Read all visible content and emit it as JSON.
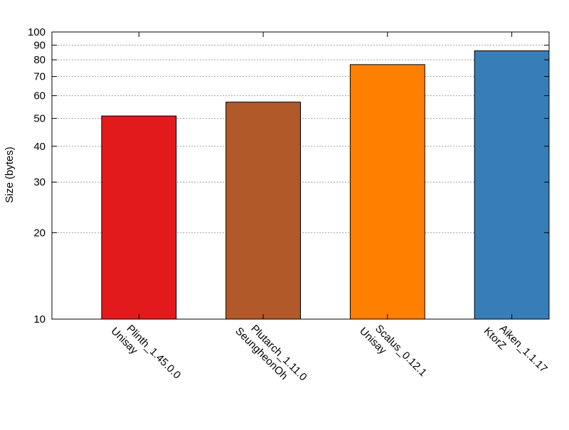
{
  "chart_data": {
    "type": "bar",
    "ylabel": "Size (bytes)",
    "yscale": "log",
    "ylim": [
      10,
      100
    ],
    "yticks": [
      10,
      20,
      30,
      40,
      50,
      60,
      70,
      80,
      90,
      100
    ],
    "grid": true,
    "categories": [
      {
        "line1": "Plinth_1.45.0.0",
        "line2": "Unisay"
      },
      {
        "line1": "Plutarch_1.11.0",
        "line2": "SeungheonOh"
      },
      {
        "line1": "Scalus_0.12.1",
        "line2": "Unisay"
      },
      {
        "line1": "Aiken_1.1.17",
        "line2": "KtorZ"
      }
    ],
    "values": [
      51,
      57,
      77,
      86
    ],
    "colors": [
      "#e31a1c",
      "#b15928",
      "#ff7f00",
      "#377eb8"
    ]
  }
}
